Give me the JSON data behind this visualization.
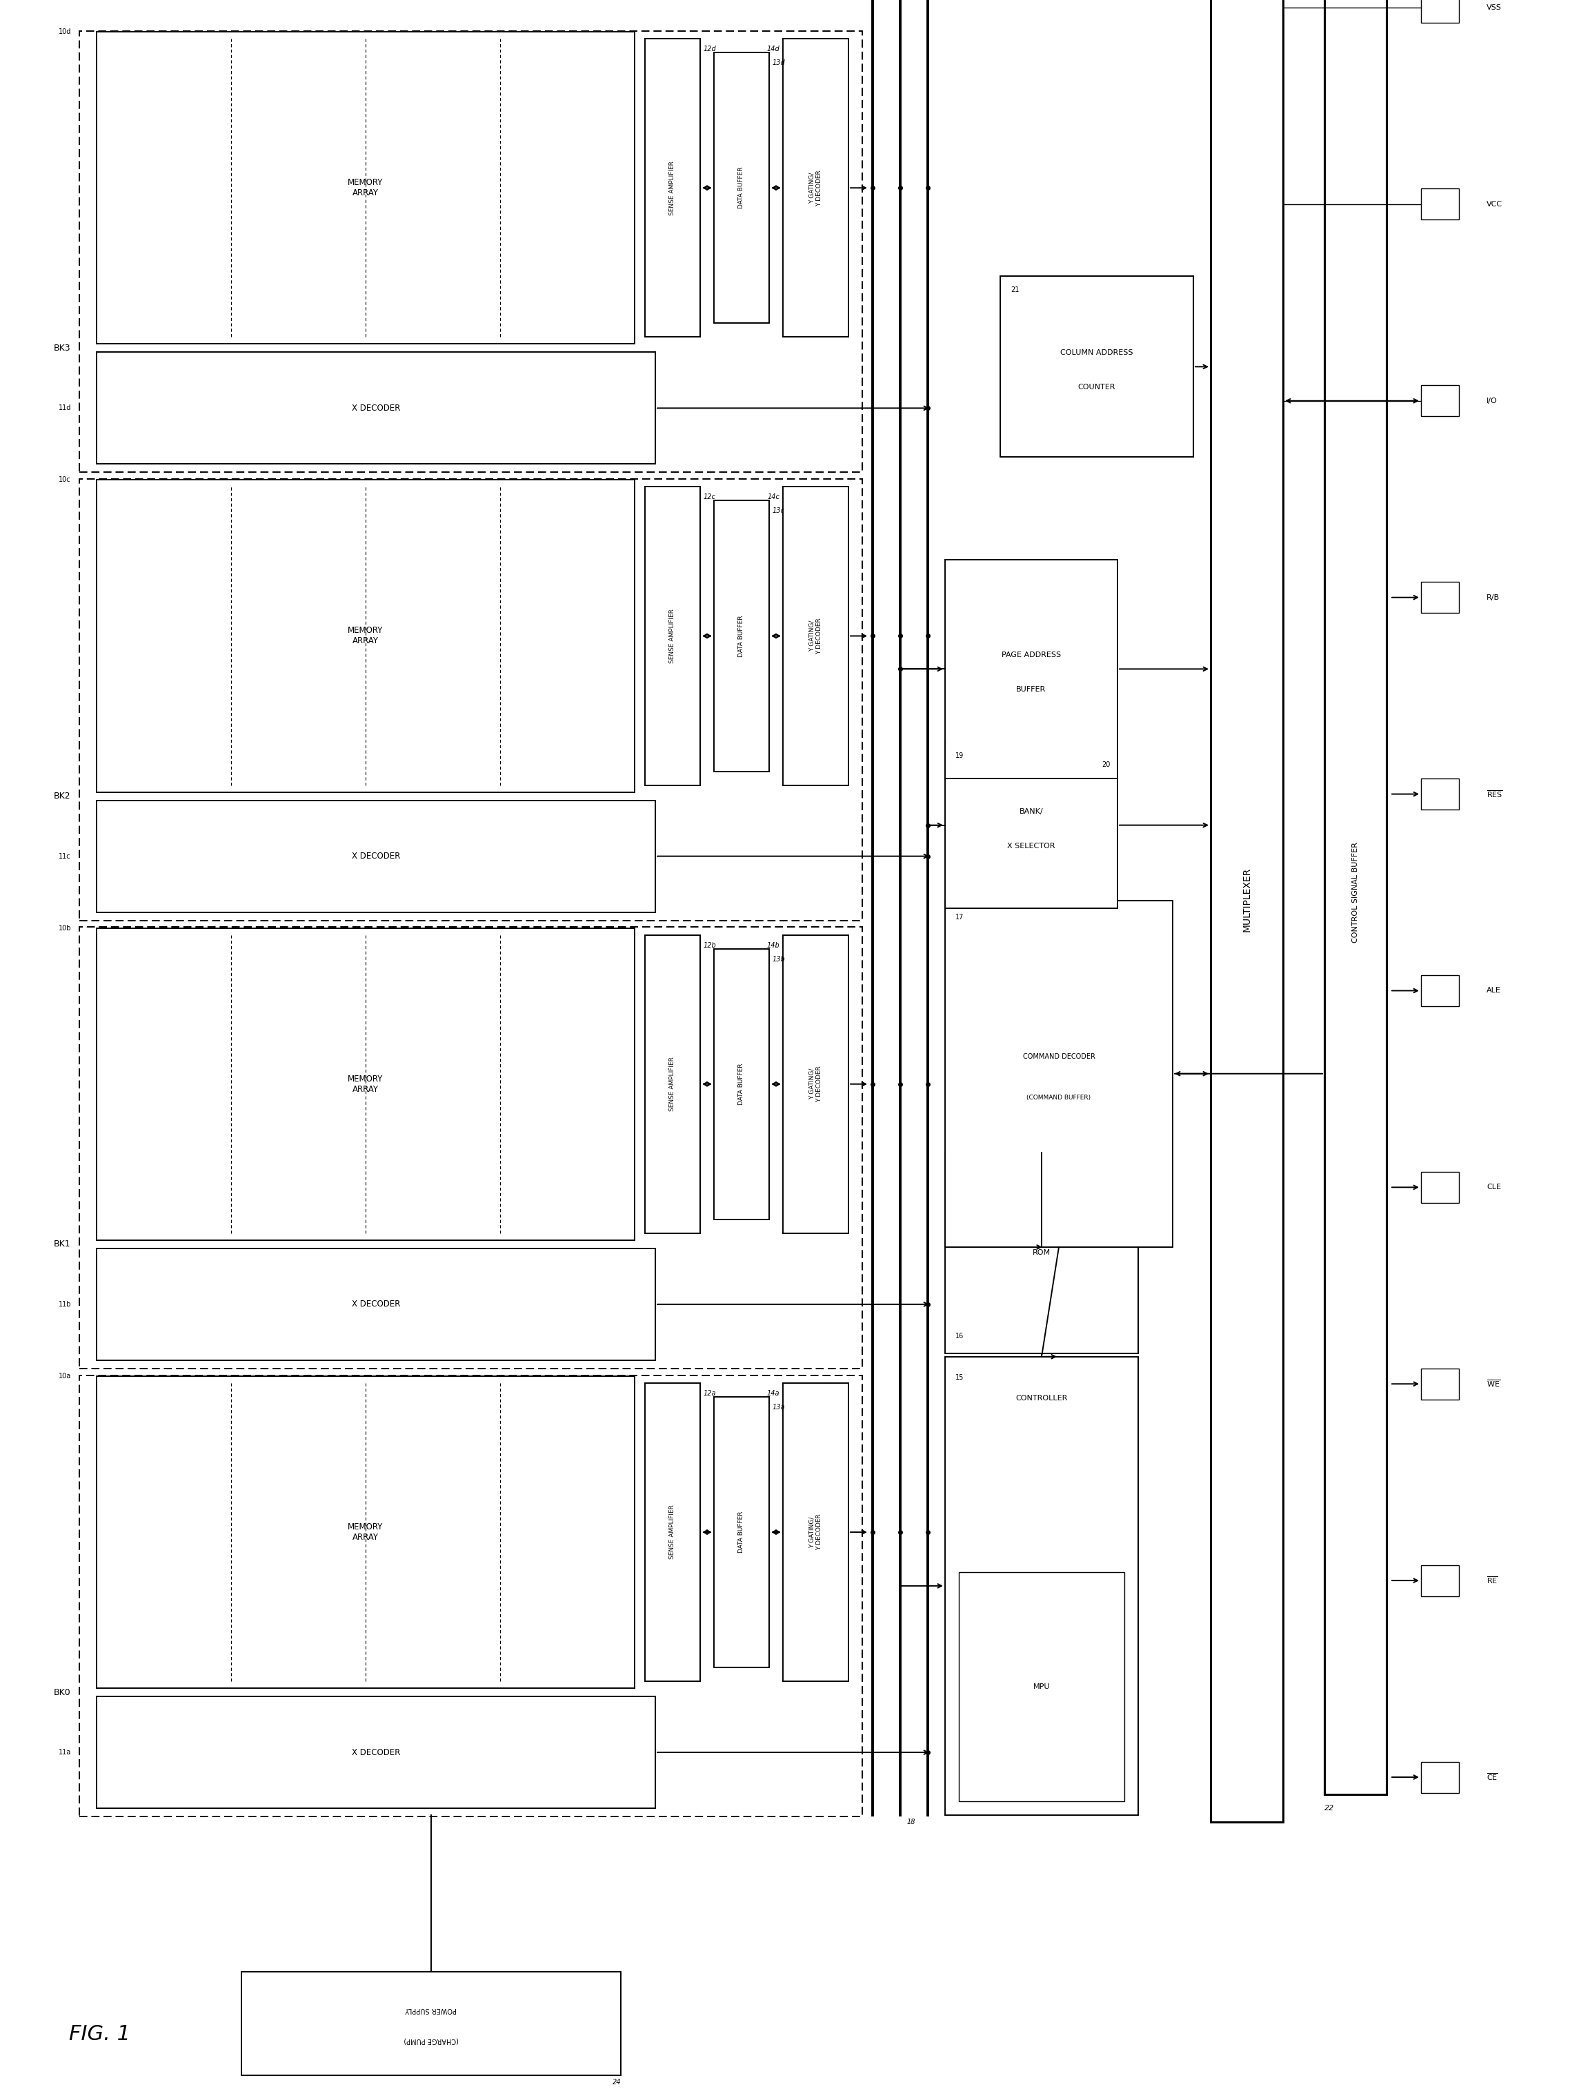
{
  "title": "FIG. 1",
  "fig_width": 22.76,
  "fig_height": 30.37,
  "banks": [
    {
      "name": "BK3",
      "mem_num": "10d",
      "xd_num": "11d",
      "sa_num": "12d",
      "db_num": "13d",
      "yd_num": "14d"
    },
    {
      "name": "BK2",
      "mem_num": "10c",
      "xd_num": "11c",
      "sa_num": "12c",
      "db_num": "13c",
      "yd_num": "14c"
    },
    {
      "name": "BK1",
      "mem_num": "10b",
      "xd_num": "11b",
      "sa_num": "12b",
      "db_num": "13b",
      "yd_num": "14b"
    },
    {
      "name": "BK0",
      "mem_num": "10a",
      "xd_num": "11a",
      "sa_num": "12a",
      "db_num": "13a",
      "yd_num": "14a"
    }
  ],
  "pins": [
    "VSS",
    "VCC",
    "I/O",
    "R/B",
    "RES",
    "ALE",
    "CLE",
    "WE",
    "RE",
    "CE"
  ],
  "pin_overline": [
    false,
    false,
    false,
    false,
    true,
    false,
    false,
    true,
    true,
    true
  ]
}
